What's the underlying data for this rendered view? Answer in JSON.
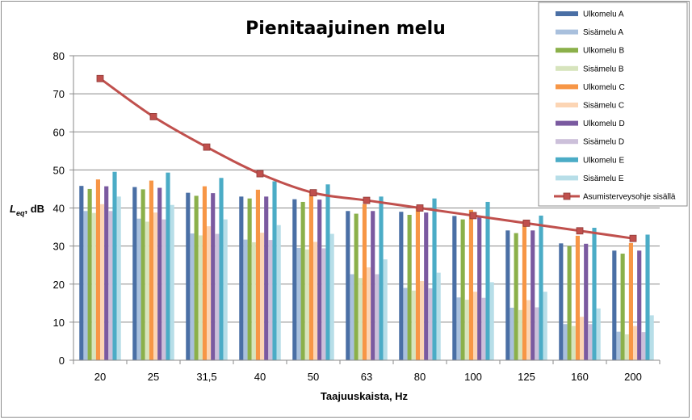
{
  "chart_data": {
    "type": "bar",
    "title": "Pienitaajuinen melu",
    "xlabel": "Taajuuskaista, Hz",
    "ylabel_main": "L",
    "ylabel_sub": "eq",
    "ylabel_rest": ", dB",
    "ylim": [
      0,
      80
    ],
    "yticks": [
      0,
      10,
      20,
      30,
      40,
      50,
      60,
      70,
      80
    ],
    "grid": true,
    "legend_position": "top-right",
    "categories": [
      "20",
      "25",
      "31,5",
      "40",
      "50",
      "63",
      "80",
      "100",
      "125",
      "160",
      "200"
    ],
    "series": [
      {
        "name": "Ulkomelu A",
        "kind": "bar",
        "color": "#4a6fa5",
        "values": [
          45.8,
          45.5,
          44,
          43,
          42.3,
          39.2,
          39,
          37.9,
          34.1,
          30.7,
          28.8
        ]
      },
      {
        "name": "Sisämelu A",
        "kind": "bar",
        "color": "#a9c0dd",
        "values": [
          39.2,
          37.2,
          33.3,
          31.7,
          29.5,
          22.6,
          19,
          16.5,
          13.8,
          9.5,
          7.5
        ]
      },
      {
        "name": "Ulkomelu B",
        "kind": "bar",
        "color": "#8bb04a",
        "values": [
          45,
          44.9,
          43.2,
          42.5,
          41.6,
          38.5,
          38.2,
          37,
          33.4,
          30,
          28
        ]
      },
      {
        "name": "Sisämelu B",
        "kind": "bar",
        "color": "#d7e4bd",
        "values": [
          38.7,
          36.4,
          32.8,
          31,
          29.1,
          21.6,
          18.3,
          15.9,
          13.2,
          9,
          6.8
        ]
      },
      {
        "name": "Ulkomelu C",
        "kind": "bar",
        "color": "#f79646",
        "values": [
          47.5,
          47.2,
          45.7,
          44.8,
          44,
          41,
          40.2,
          39.5,
          36.6,
          32.7,
          30.8
        ]
      },
      {
        "name": "Sisämelu C",
        "kind": "bar",
        "color": "#fcd5b4",
        "values": [
          41,
          38.8,
          35.2,
          33.5,
          31.1,
          24.4,
          20.8,
          18,
          15.8,
          11.4,
          9
        ]
      },
      {
        "name": "Ulkomelu D",
        "kind": "bar",
        "color": "#7a5aa0",
        "values": [
          45.7,
          45.3,
          43.9,
          43,
          42.2,
          39.2,
          38.8,
          37.8,
          34.1,
          30.6,
          28.8
        ]
      },
      {
        "name": "Sisämelu D",
        "kind": "bar",
        "color": "#ccc0da",
        "values": [
          39.2,
          37,
          33.2,
          31.6,
          29.4,
          22.6,
          18.9,
          16.4,
          13.9,
          9.5,
          7.4
        ]
      },
      {
        "name": "Ulkomelu E",
        "kind": "bar",
        "color": "#4bacc6",
        "values": [
          49.5,
          49.3,
          47.9,
          47,
          46.2,
          43,
          42.5,
          41.6,
          38,
          34.8,
          33
        ]
      },
      {
        "name": "Sisämelu E",
        "kind": "bar",
        "color": "#b7dee8",
        "values": [
          43,
          40.8,
          37,
          35.5,
          33.2,
          26.5,
          23,
          20.5,
          18,
          13.6,
          11.8
        ]
      },
      {
        "name": "Asumisterveysohje sisällä",
        "kind": "line",
        "color": "#c0504d",
        "values": [
          74,
          64,
          56,
          49,
          44,
          42,
          40,
          38,
          36,
          34,
          32
        ]
      }
    ]
  }
}
